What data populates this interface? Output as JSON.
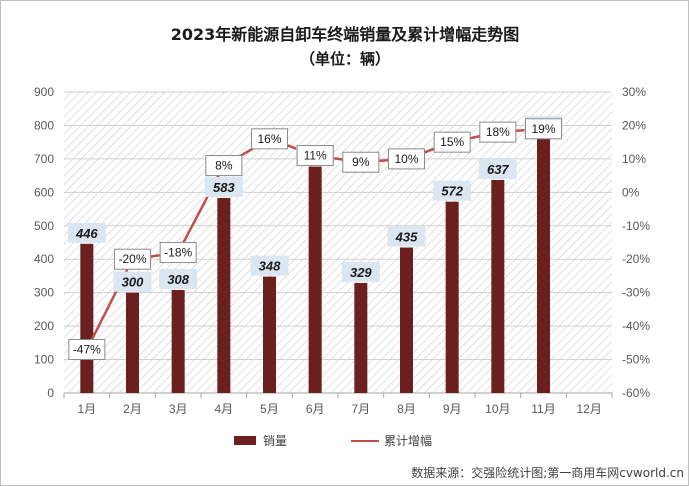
{
  "chart_data": {
    "type": "bar+line",
    "title": "2023年新能源自卸车终端销量及累计增幅走势图",
    "subtitle": "（单位：辆）",
    "categories": [
      "1月",
      "2月",
      "3月",
      "4月",
      "5月",
      "6月",
      "7月",
      "8月",
      "9月",
      "10月",
      "11月",
      "12月"
    ],
    "series": [
      {
        "name": "销量",
        "type": "bar",
        "axis": "left",
        "color": "#6b1f1f",
        "values": [
          446,
          300,
          308,
          583,
          348,
          677,
          329,
          435,
          572,
          637,
          766,
          null
        ],
        "labels": [
          "446",
          "300",
          "308",
          "583",
          "348",
          "677",
          "329",
          "435",
          "572",
          "637",
          "766",
          ""
        ]
      },
      {
        "name": "累计增幅",
        "type": "line",
        "axis": "right",
        "color": "#c0504d",
        "values": [
          -47,
          -20,
          -18,
          8,
          16,
          11,
          9,
          10,
          15,
          18,
          19,
          null
        ],
        "labels": [
          "-47%",
          "-20%",
          "-18%",
          "8%",
          "16%",
          "11%",
          "9%",
          "10%",
          "15%",
          "18%",
          "19%",
          ""
        ]
      }
    ],
    "y_left": {
      "min": 0,
      "max": 900,
      "step": 100,
      "ticks": [
        "0",
        "100",
        "200",
        "300",
        "400",
        "500",
        "600",
        "700",
        "800",
        "900"
      ]
    },
    "y_right": {
      "min": -60,
      "max": 30,
      "step": 10,
      "ticks": [
        "-60%",
        "-50%",
        "-40%",
        "-30%",
        "-20%",
        "-10%",
        "0%",
        "10%",
        "20%",
        "30%"
      ]
    },
    "grid": true,
    "legend_position": "bottom"
  },
  "source": "数据来源：交强险统计图;第一商用车网cvworld.cn",
  "colors": {
    "bar": "#6b1f1f",
    "line": "#c0504d",
    "label_bg": "#dce6f1"
  }
}
